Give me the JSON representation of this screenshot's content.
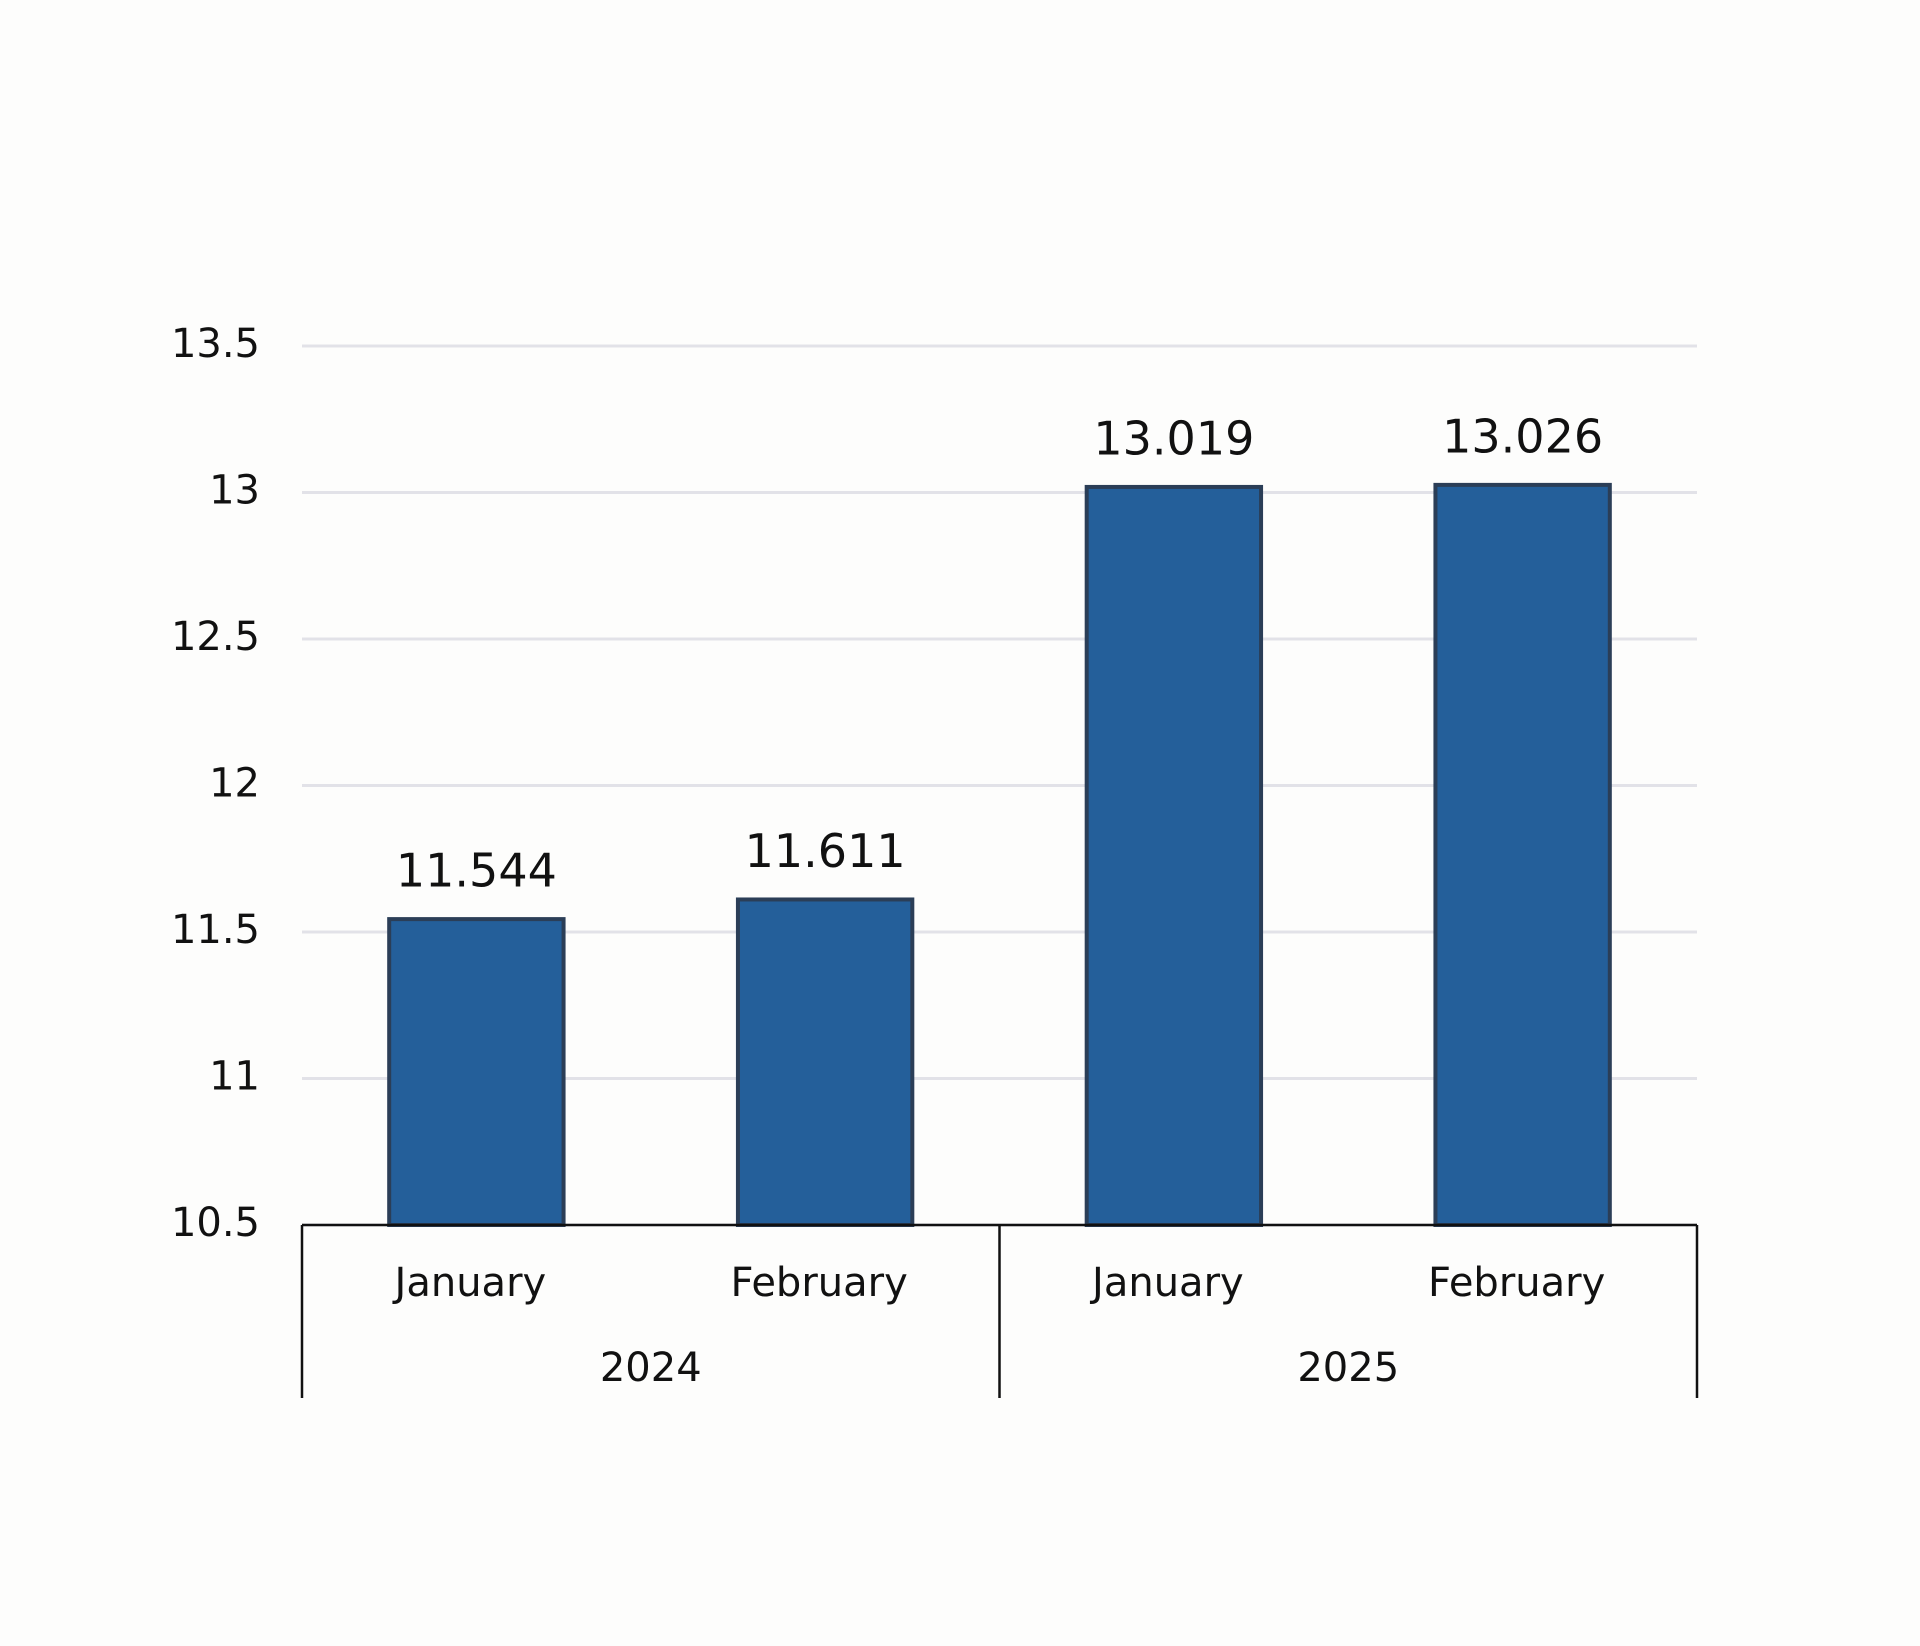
{
  "chart_data": {
    "type": "bar",
    "categories": [
      "January",
      "February",
      "January",
      "February"
    ],
    "groups": [
      "2024",
      "2025"
    ],
    "values": [
      11.544,
      11.611,
      13.019,
      13.026
    ],
    "color": "#245f9a",
    "ylim": [
      10.5,
      13.5
    ],
    "yticks": [
      10.5,
      11,
      11.5,
      12,
      12.5,
      13,
      13.5
    ],
    "grid": true
  }
}
